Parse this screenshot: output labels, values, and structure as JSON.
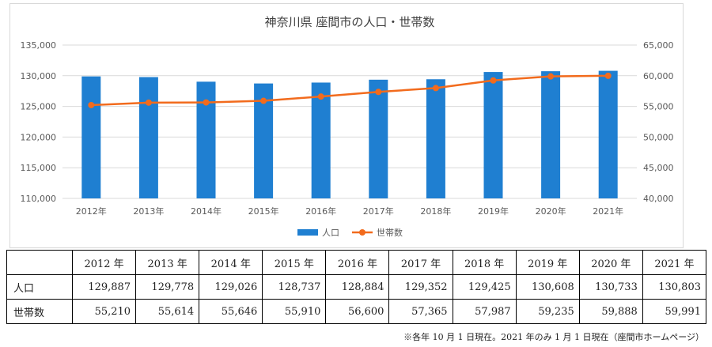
{
  "chart_data": {
    "type": "bar+line",
    "title": "神奈川県 座間市の人口・世帯数",
    "categories": [
      "2012年",
      "2013年",
      "2014年",
      "2015年",
      "2016年",
      "2017年",
      "2018年",
      "2019年",
      "2020年",
      "2021年"
    ],
    "series": [
      {
        "name": "人口",
        "type": "bar",
        "axis": "left",
        "color": "#1f7fd1",
        "values": [
          129887,
          129778,
          129026,
          128737,
          128884,
          129352,
          129425,
          130608,
          130733,
          130803
        ]
      },
      {
        "name": "世帯数",
        "type": "line",
        "axis": "right",
        "color": "#f26b1d",
        "values": [
          55210,
          55614,
          55646,
          55910,
          56600,
          57365,
          57987,
          59235,
          59888,
          59991
        ]
      }
    ],
    "y_left": {
      "min": 110000,
      "max": 135000,
      "ticks": [
        "110,000",
        "115,000",
        "120,000",
        "125,000",
        "130,000",
        "135,000"
      ]
    },
    "y_right": {
      "min": 40000,
      "max": 65000,
      "ticks": [
        "40,000",
        "45,000",
        "50,000",
        "55,000",
        "60,000",
        "65,000"
      ]
    },
    "grid": true,
    "legend_position": "bottom"
  },
  "table": {
    "headers": [
      "2012 年",
      "2013 年",
      "2014 年",
      "2015 年",
      "2016 年",
      "2017 年",
      "2018 年",
      "2019 年",
      "2020 年",
      "2021 年"
    ],
    "rows": [
      {
        "label": "人口",
        "values": [
          "129,887",
          "129,778",
          "129,026",
          "128,737",
          "128,884",
          "129,352",
          "129,425",
          "130,608",
          "130,733",
          "130,803"
        ]
      },
      {
        "label": "世帯数",
        "values": [
          "55,210",
          "55,614",
          "55,646",
          "55,910",
          "56,600",
          "57,365",
          "57,987",
          "59,235",
          "59,888",
          "59,991"
        ]
      }
    ]
  },
  "footnote": "※各年 10 月 1 日現在。2021 年のみ 1 月 1 日現在（座間市ホームページ）"
}
